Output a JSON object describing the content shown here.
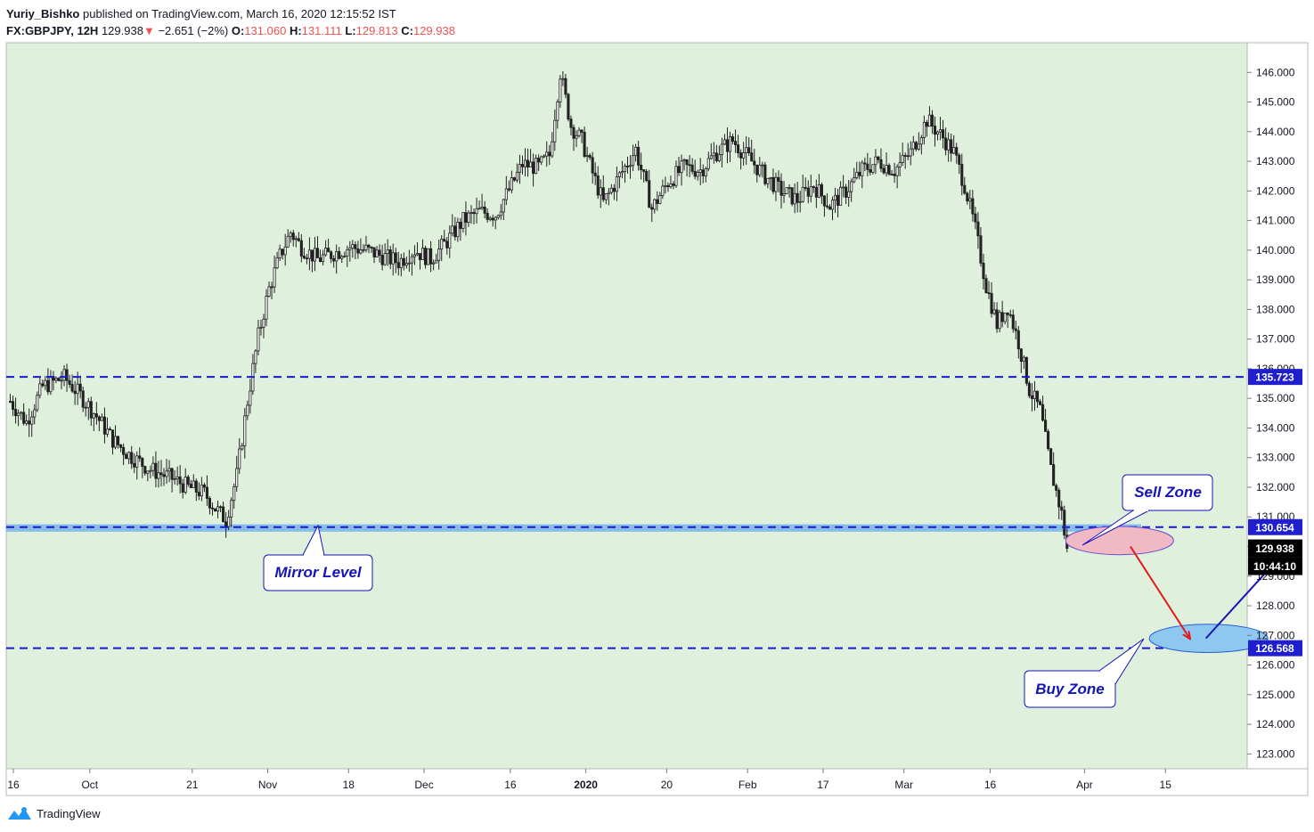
{
  "header": {
    "author": "Yuriy_Bishko",
    "published_text": "published on TradingView.com, March 16, 2020 12:15:52 IST",
    "symbol": "FX:GBPJPY, 12H",
    "last": "129.938",
    "change_arrow": "▼",
    "change": "−2.651 (−2%)",
    "o_label": "O:",
    "o_value": "131.060",
    "h_label": "H:",
    "h_value": "131.111",
    "l_label": "L:",
    "l_value": "129.813",
    "c_label": "C:",
    "c_value": "129.938"
  },
  "footer": {
    "brand": "TradingView"
  },
  "colors": {
    "background": "#dff0dd",
    "candle": "#222222",
    "level_line": "#1919d2",
    "label_bg": "#1f1fcf",
    "mirror_band": "#78b4ea",
    "sell_zone": "#f1b9c4",
    "buy_zone": "#8ec7ef",
    "down_arrow": "#e01919",
    "up_arrow": "#1414b8",
    "callout_text": "#1414b8"
  },
  "chart_data": {
    "type": "candlestick",
    "ylim": [
      122.5,
      147.0
    ],
    "y_ticks": [
      123,
      124,
      125,
      126,
      127,
      128,
      129,
      130,
      131,
      132,
      133,
      134,
      135,
      136,
      137,
      138,
      139,
      140,
      141,
      142,
      143,
      144,
      145,
      146
    ],
    "x_tick_labels": [
      "16",
      "Oct",
      "21",
      "Nov",
      "18",
      "Dec",
      "16",
      "2020",
      "20",
      "Feb",
      "17",
      "Mar",
      "16",
      "Apr",
      "15"
    ],
    "x_tick_bold": [
      false,
      false,
      false,
      false,
      false,
      false,
      false,
      true,
      false,
      false,
      false,
      false,
      false,
      false,
      false
    ],
    "grid": false,
    "path": [
      [
        0,
        134.9
      ],
      [
        6,
        134.2
      ],
      [
        12,
        135.4
      ],
      [
        20,
        135.7
      ],
      [
        26,
        135.1
      ],
      [
        32,
        134.4
      ],
      [
        38,
        133.6
      ],
      [
        44,
        133.1
      ],
      [
        52,
        132.6
      ],
      [
        60,
        132.3
      ],
      [
        66,
        132.0
      ],
      [
        72,
        131.8
      ],
      [
        76,
        131.3
      ],
      [
        80,
        130.9
      ],
      [
        84,
        132.4
      ],
      [
        88,
        134.9
      ],
      [
        92,
        137.1
      ],
      [
        96,
        138.7
      ],
      [
        100,
        139.8
      ],
      [
        104,
        140.6
      ],
      [
        108,
        140.1
      ],
      [
        114,
        139.7
      ],
      [
        120,
        139.9
      ],
      [
        126,
        140.1
      ],
      [
        132,
        140.0
      ],
      [
        138,
        139.8
      ],
      [
        144,
        139.6
      ],
      [
        150,
        140.0
      ],
      [
        156,
        139.7
      ],
      [
        162,
        140.3
      ],
      [
        168,
        141.0
      ],
      [
        174,
        141.3
      ],
      [
        180,
        141.2
      ],
      [
        186,
        142.2
      ],
      [
        190,
        142.9
      ],
      [
        196,
        142.8
      ],
      [
        200,
        143.2
      ],
      [
        204,
        146.0
      ],
      [
        208,
        144.2
      ],
      [
        212,
        143.7
      ],
      [
        216,
        142.6
      ],
      [
        220,
        141.6
      ],
      [
        226,
        142.5
      ],
      [
        232,
        143.4
      ],
      [
        238,
        141.4
      ],
      [
        244,
        142.3
      ],
      [
        250,
        142.8
      ],
      [
        256,
        142.7
      ],
      [
        262,
        143.3
      ],
      [
        268,
        143.7
      ],
      [
        274,
        143.1
      ],
      [
        280,
        142.5
      ],
      [
        286,
        142.0
      ],
      [
        292,
        141.7
      ],
      [
        298,
        142.2
      ],
      [
        304,
        141.5
      ],
      [
        310,
        142.0
      ],
      [
        316,
        142.7
      ],
      [
        322,
        143.0
      ],
      [
        328,
        142.7
      ],
      [
        334,
        143.3
      ],
      [
        340,
        144.4
      ],
      [
        346,
        143.8
      ],
      [
        350,
        143.3
      ],
      [
        354,
        142.2
      ],
      [
        358,
        140.7
      ],
      [
        362,
        138.8
      ],
      [
        366,
        137.5
      ],
      [
        370,
        138.1
      ],
      [
        374,
        136.9
      ],
      [
        378,
        135.3
      ],
      [
        382,
        134.6
      ],
      [
        386,
        132.6
      ],
      [
        390,
        131.1
      ],
      [
        392,
        129.9
      ]
    ],
    "last_bar": 392,
    "total_bars": 458,
    "x_ticks_bar": [
      0,
      30,
      68,
      96,
      126,
      154,
      186,
      214,
      244,
      274,
      302,
      332,
      364,
      399,
      429
    ],
    "levels": [
      {
        "value": 135.723,
        "label": "135.723"
      },
      {
        "value": 130.654,
        "label": "130.654"
      },
      {
        "value": 126.568,
        "label": "126.568"
      }
    ],
    "last_price": {
      "value": 129.938,
      "label": "129.938",
      "countdown": "10:44:10"
    },
    "mirror_band": {
      "low": 130.5,
      "high": 130.75,
      "bar_from": 0,
      "bar_to": 420
    },
    "sell_zone": {
      "bar_from": 392,
      "bar_to": 432,
      "center": 130.2,
      "half_height": 0.28
    },
    "buy_zone": {
      "bar_from": 423,
      "bar_to": 467,
      "center": 126.9,
      "half_height": 0.28
    },
    "arrows": [
      {
        "name": "down-arrow",
        "from": [
          416,
          130.0
        ],
        "to": [
          438,
          126.9
        ]
      },
      {
        "name": "up-arrow",
        "from": [
          444,
          126.9
        ],
        "to": [
          474,
          129.9
        ]
      }
    ],
    "callouts": [
      {
        "name": "mirror-level-callout",
        "text": "Mirror Level"
      },
      {
        "name": "sell-zone-callout",
        "text": "Sell Zone"
      },
      {
        "name": "buy-zone-callout",
        "text": "Buy Zone"
      }
    ]
  }
}
